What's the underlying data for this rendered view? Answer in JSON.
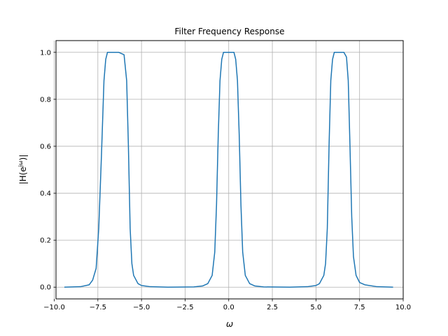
{
  "chart_data": {
    "type": "line",
    "title": "Filter Frequency Response",
    "xlabel": "ω",
    "ylabel_parts": [
      "|H(e",
      "jω",
      ")|"
    ],
    "xlim": [
      -9.9,
      10.0
    ],
    "ylim": [
      -0.05,
      1.05
    ],
    "xticks": [
      -10.0,
      -7.5,
      -5.0,
      -2.5,
      0.0,
      2.5,
      5.0,
      7.5,
      10.0
    ],
    "xtick_labels": [
      "−10.0",
      "−7.5",
      "−5.0",
      "−2.5",
      "0.0",
      "2.5",
      "5.0",
      "7.5",
      "10.0"
    ],
    "yticks": [
      0.0,
      0.2,
      0.4,
      0.6,
      0.8,
      1.0
    ],
    "ytick_labels": [
      "0.0",
      "0.2",
      "0.4",
      "0.6",
      "0.8",
      "1.0"
    ],
    "grid": true,
    "series": [
      {
        "color": "#1f77b4",
        "points": [
          [
            -9.42,
            0.0
          ],
          [
            -8.5,
            0.002
          ],
          [
            -8.0,
            0.01
          ],
          [
            -7.8,
            0.03
          ],
          [
            -7.6,
            0.08
          ],
          [
            -7.45,
            0.25
          ],
          [
            -7.3,
            0.55
          ],
          [
            -7.15,
            0.88
          ],
          [
            -7.05,
            0.97
          ],
          [
            -6.95,
            1.0
          ],
          [
            -6.6,
            1.0
          ],
          [
            -6.3,
            1.0
          ],
          [
            -6.0,
            0.99
          ],
          [
            -5.85,
            0.88
          ],
          [
            -5.75,
            0.6
          ],
          [
            -5.65,
            0.25
          ],
          [
            -5.55,
            0.1
          ],
          [
            -5.45,
            0.05
          ],
          [
            -5.2,
            0.015
          ],
          [
            -5.0,
            0.007
          ],
          [
            -4.5,
            0.002
          ],
          [
            -3.5,
            0.0
          ],
          [
            -2.0,
            0.001
          ],
          [
            -1.5,
            0.005
          ],
          [
            -1.2,
            0.015
          ],
          [
            -0.95,
            0.05
          ],
          [
            -0.8,
            0.15
          ],
          [
            -0.7,
            0.35
          ],
          [
            -0.6,
            0.65
          ],
          [
            -0.5,
            0.88
          ],
          [
            -0.4,
            0.97
          ],
          [
            -0.3,
            1.0
          ],
          [
            0.0,
            1.0
          ],
          [
            0.3,
            1.0
          ],
          [
            0.4,
            0.97
          ],
          [
            0.5,
            0.88
          ],
          [
            0.6,
            0.65
          ],
          [
            0.7,
            0.35
          ],
          [
            0.8,
            0.15
          ],
          [
            0.95,
            0.05
          ],
          [
            1.2,
            0.015
          ],
          [
            1.5,
            0.005
          ],
          [
            2.0,
            0.001
          ],
          [
            3.5,
            0.0
          ],
          [
            4.5,
            0.002
          ],
          [
            5.0,
            0.007
          ],
          [
            5.2,
            0.015
          ],
          [
            5.45,
            0.05
          ],
          [
            5.55,
            0.1
          ],
          [
            5.65,
            0.25
          ],
          [
            5.75,
            0.6
          ],
          [
            5.85,
            0.88
          ],
          [
            5.95,
            0.97
          ],
          [
            6.05,
            1.0
          ],
          [
            6.3,
            1.0
          ],
          [
            6.6,
            1.0
          ],
          [
            6.75,
            0.98
          ],
          [
            6.85,
            0.88
          ],
          [
            6.95,
            0.6
          ],
          [
            7.05,
            0.3
          ],
          [
            7.15,
            0.13
          ],
          [
            7.3,
            0.05
          ],
          [
            7.5,
            0.02
          ],
          [
            7.8,
            0.01
          ],
          [
            8.5,
            0.002
          ],
          [
            9.42,
            0.0
          ]
        ]
      }
    ]
  }
}
